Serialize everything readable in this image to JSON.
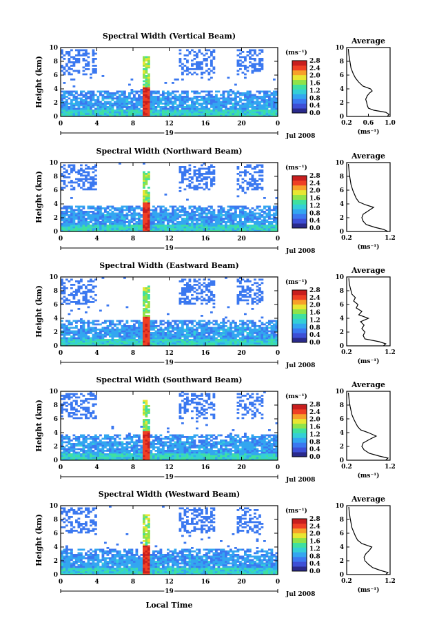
{
  "colors": {
    "colormap": [
      "#2a2a8c",
      "#3d4fd6",
      "#3b78f0",
      "#33a6f0",
      "#34cfd6",
      "#3fe0a0",
      "#8fe34a",
      "#e8e632",
      "#f7a02a",
      "#ef3f24",
      "#c81e1e"
    ],
    "line": "#000000",
    "background": "#ffffff"
  },
  "colorbar": {
    "unit_label": "(ms⁻¹)",
    "tick_labels": [
      "0.0",
      "0.4",
      "0.8",
      "1.2",
      "1.6",
      "2.0",
      "2.4",
      "2.8"
    ]
  },
  "chart_data": [
    {
      "type": "heatmap",
      "title": "Spectral Width (Vertical Beam)",
      "ylabel": "Height (km)",
      "xlabel": "",
      "x_ticks": [
        "0",
        "4",
        "8",
        "12",
        "16",
        "20",
        "0"
      ],
      "date_day": "19",
      "date_month": "Jul 2008",
      "xlim": [
        0,
        24
      ],
      "ylim": [
        0,
        10
      ],
      "y_ticks": [
        "0",
        "2",
        "4",
        "6",
        "8",
        "10"
      ],
      "colorbar_range": [
        0.0,
        2.8
      ],
      "profile": {
        "type": "line",
        "title": "Average",
        "xlabel": "(ms⁻¹)",
        "x_ticks": [
          "0.2",
          "0.6",
          "1.0"
        ],
        "xlim": [
          0.2,
          1.0
        ],
        "y_ticks": [
          "0",
          "2",
          "4",
          "6",
          "8",
          "10"
        ],
        "height_km": [
          0,
          0.3,
          0.6,
          0.9,
          1.2,
          1.6,
          2.0,
          2.5,
          3.0,
          3.4,
          3.7,
          4.0,
          4.4,
          5.0,
          5.6,
          6.2,
          7.0,
          8.0,
          9.0,
          9.8
        ],
        "width_ms": [
          0.95,
          0.98,
          0.92,
          0.7,
          0.6,
          0.58,
          0.57,
          0.55,
          0.58,
          0.62,
          0.67,
          0.64,
          0.5,
          0.42,
          0.36,
          0.32,
          0.28,
          0.26,
          0.24,
          0.23
        ]
      }
    },
    {
      "type": "heatmap",
      "title": "Spectral Width (Northward Beam)",
      "ylabel": "Height (km)",
      "xlabel": "",
      "x_ticks": [
        "0",
        "4",
        "8",
        "12",
        "16",
        "20",
        "0"
      ],
      "date_day": "19",
      "date_month": "Jul 2008",
      "xlim": [
        0,
        24
      ],
      "ylim": [
        0,
        10
      ],
      "y_ticks": [
        "0",
        "2",
        "4",
        "6",
        "8",
        "10"
      ],
      "colorbar_range": [
        0.0,
        2.8
      ],
      "profile": {
        "type": "line",
        "title": "Average",
        "xlabel": "(ms⁻¹)",
        "x_ticks": [
          "0.2",
          "1.2"
        ],
        "xlim": [
          0.2,
          1.2
        ],
        "y_ticks": [
          "0",
          "2",
          "4",
          "6",
          "8",
          "10"
        ],
        "height_km": [
          0,
          0.3,
          0.6,
          1.0,
          1.5,
          2.0,
          2.5,
          3.0,
          3.5,
          3.9,
          4.3,
          4.8,
          5.4,
          6.0,
          6.8,
          7.6,
          8.4,
          9.2,
          9.8
        ],
        "width_ms": [
          1.15,
          1.05,
          0.85,
          0.65,
          0.58,
          0.55,
          0.58,
          0.7,
          0.82,
          0.62,
          0.48,
          0.42,
          0.38,
          0.34,
          0.3,
          0.28,
          0.26,
          0.25,
          0.24
        ]
      }
    },
    {
      "type": "heatmap",
      "title": "Spectral Width (Eastward Beam)",
      "ylabel": "Height (km)",
      "xlabel": "",
      "x_ticks": [
        "0",
        "4",
        "8",
        "12",
        "16",
        "20",
        "0"
      ],
      "date_day": "19",
      "date_month": "Jul 2008",
      "xlim": [
        0,
        24
      ],
      "ylim": [
        0,
        10
      ],
      "y_ticks": [
        "0",
        "2",
        "4",
        "6",
        "8",
        "10"
      ],
      "colorbar_range": [
        0.0,
        2.8
      ],
      "profile": {
        "type": "line",
        "title": "Average",
        "xlabel": "(ms⁻¹)",
        "x_ticks": [
          "0.2",
          "1.2"
        ],
        "xlim": [
          0.2,
          1.2
        ],
        "y_ticks": [
          "0",
          "2",
          "4",
          "6",
          "8",
          "10"
        ],
        "height_km": [
          0,
          0.3,
          0.6,
          1.0,
          1.5,
          2.0,
          2.5,
          3.0,
          3.5,
          4.0,
          4.5,
          5.0,
          5.5,
          6.0,
          6.5,
          7.0,
          7.5,
          8.0,
          8.5,
          9.0,
          9.8
        ],
        "width_ms": [
          1.05,
          1.1,
          0.95,
          0.62,
          0.58,
          0.62,
          0.55,
          0.6,
          0.52,
          0.7,
          0.48,
          0.55,
          0.42,
          0.46,
          0.36,
          0.4,
          0.32,
          0.3,
          0.28,
          0.26,
          0.25
        ]
      }
    },
    {
      "type": "heatmap",
      "title": "Spectral Width (Southward Beam)",
      "ylabel": "Height (km)",
      "xlabel": "",
      "x_ticks": [
        "0",
        "4",
        "8",
        "12",
        "16",
        "20",
        "0"
      ],
      "date_day": "19",
      "date_month": "Jul 2008",
      "xlim": [
        0,
        24
      ],
      "ylim": [
        0,
        10
      ],
      "y_ticks": [
        "0",
        "2",
        "4",
        "6",
        "8",
        "10"
      ],
      "colorbar_range": [
        0.0,
        2.8
      ],
      "profile": {
        "type": "line",
        "title": "Average",
        "xlabel": "(ms⁻¹)",
        "x_ticks": [
          "0.2",
          "1.2"
        ],
        "xlim": [
          0.2,
          1.2
        ],
        "y_ticks": [
          "0",
          "2",
          "4",
          "6",
          "8",
          "10"
        ],
        "height_km": [
          0,
          0.3,
          0.6,
          1.0,
          1.5,
          2.0,
          2.5,
          3.0,
          3.5,
          4.0,
          4.4,
          4.9,
          5.5,
          6.0,
          6.6,
          7.2,
          7.8,
          8.5,
          9.2,
          9.8
        ],
        "width_ms": [
          1.1,
          1.15,
          0.95,
          0.72,
          0.6,
          0.55,
          0.58,
          0.72,
          0.88,
          0.7,
          0.52,
          0.45,
          0.4,
          0.36,
          0.32,
          0.3,
          0.28,
          0.26,
          0.25,
          0.24
        ]
      }
    },
    {
      "type": "heatmap",
      "title": "Spectral Width (Westward Beam)",
      "ylabel": "Height (km)",
      "xlabel": "Local Time",
      "x_ticks": [
        "0",
        "4",
        "8",
        "12",
        "16",
        "20",
        "0"
      ],
      "date_day": "19",
      "date_month": "Jul 2008",
      "xlim": [
        0,
        24
      ],
      "ylim": [
        0,
        10
      ],
      "y_ticks": [
        "0",
        "2",
        "4",
        "6",
        "8",
        "10"
      ],
      "colorbar_range": [
        0.0,
        2.8
      ],
      "profile": {
        "type": "line",
        "title": "Average",
        "xlabel": "(ms⁻¹)",
        "x_ticks": [
          "0.2",
          "1.2"
        ],
        "xlim": [
          0.2,
          1.2
        ],
        "y_ticks": [
          "0",
          "2",
          "4",
          "6",
          "8",
          "10"
        ],
        "height_km": [
          0,
          0.3,
          0.6,
          1.0,
          1.5,
          2.0,
          2.5,
          3.0,
          3.5,
          4.0,
          4.5,
          5.0,
          5.6,
          6.2,
          6.8,
          7.5,
          8.2,
          9.0,
          9.8
        ],
        "width_ms": [
          1.1,
          1.15,
          0.98,
          0.8,
          0.7,
          0.62,
          0.6,
          0.64,
          0.72,
          0.78,
          0.55,
          0.45,
          0.4,
          0.36,
          0.32,
          0.3,
          0.28,
          0.26,
          0.25
        ]
      }
    }
  ]
}
